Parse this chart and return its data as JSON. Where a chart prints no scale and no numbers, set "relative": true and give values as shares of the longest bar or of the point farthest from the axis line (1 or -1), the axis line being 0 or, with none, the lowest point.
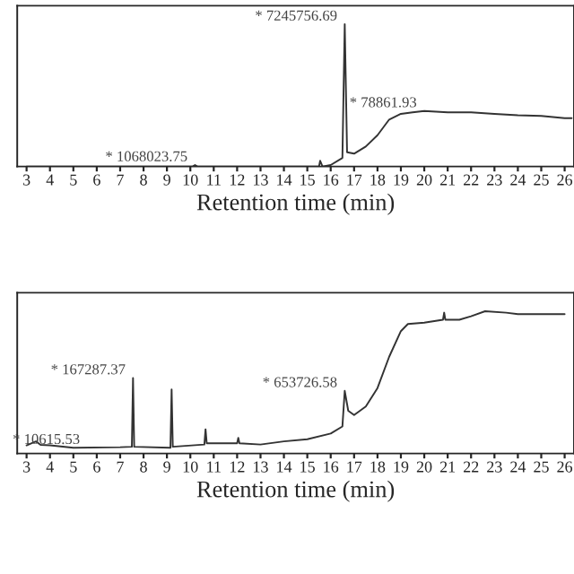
{
  "chart_data": [
    {
      "type": "line",
      "relative": true,
      "xlabel": "Retention time (min)",
      "xlim": [
        2.6,
        26.4
      ],
      "xticks": [
        3,
        4,
        5,
        6,
        7,
        8,
        9,
        10,
        11,
        12,
        13,
        14,
        15,
        16,
        17,
        18,
        19,
        20,
        21,
        22,
        23,
        24,
        25,
        26
      ],
      "x": [
        3,
        10.1,
        10.2,
        10.3,
        15.5,
        15.55,
        15.65,
        16.0,
        16.5,
        16.6,
        16.7,
        17.0,
        17.5,
        18,
        18.5,
        19,
        19.5,
        20,
        21,
        22,
        23,
        24,
        25,
        26,
        26.3
      ],
      "series": [
        {
          "color": "#333333",
          "values": [
            0,
            0,
            0.01,
            0,
            0,
            0.04,
            0,
            0.01,
            0.06,
            1.0,
            0.1,
            0.09,
            0.14,
            0.22,
            0.33,
            0.37,
            0.38,
            0.39,
            0.38,
            0.38,
            0.37,
            0.36,
            0.355,
            0.34,
            0.34
          ]
        }
      ],
      "annotations": [
        {
          "text": "* 7245756.69",
          "x": 16.6,
          "y": 1.0
        },
        {
          "text": "* 78861.93",
          "x": 20,
          "y": 0.39
        },
        {
          "text": "* 1068023.75",
          "x": 10.2,
          "y": 0.01
        }
      ]
    },
    {
      "type": "line",
      "relative": true,
      "xlabel": "Retention time (min)",
      "xlim": [
        2.6,
        26.4
      ],
      "xticks": [
        3,
        4,
        5,
        6,
        7,
        8,
        9,
        10,
        11,
        12,
        13,
        14,
        15,
        16,
        17,
        18,
        19,
        20,
        21,
        22,
        23,
        24,
        25,
        26
      ],
      "x": [
        3,
        3.4,
        3.6,
        4,
        5,
        7,
        7.5,
        7.55,
        7.6,
        9.15,
        9.2,
        9.25,
        10.6,
        10.65,
        10.7,
        12,
        12.05,
        12.1,
        13,
        14,
        15,
        16,
        16.5,
        16.6,
        16.75,
        17,
        17.5,
        18,
        18.5,
        19,
        19.3,
        20,
        20.8,
        20.85,
        20.9,
        21.5,
        22,
        22.6,
        23.5,
        24,
        25,
        26
      ],
      "series": [
        {
          "color": "#333333",
          "values": [
            0.057,
            0.085,
            0.06,
            0.057,
            0.04,
            0.044,
            0.047,
            0.53,
            0.047,
            0.04,
            0.45,
            0.047,
            0.063,
            0.17,
            0.072,
            0.072,
            0.11,
            0.072,
            0.063,
            0.085,
            0.1,
            0.14,
            0.19,
            0.44,
            0.3,
            0.27,
            0.33,
            0.46,
            0.68,
            0.86,
            0.91,
            0.92,
            0.94,
            0.99,
            0.94,
            0.94,
            0.965,
            1.0,
            0.99,
            0.98,
            0.98,
            0.98
          ]
        }
      ],
      "annotations": [
        {
          "text": "* 167287.37",
          "x": 7.55,
          "y": 0.53
        },
        {
          "text": "* 10615.53",
          "x": 5.6,
          "y": 0.04
        },
        {
          "text": "* 653726.58",
          "x": 16.6,
          "y": 0.44
        }
      ]
    }
  ]
}
